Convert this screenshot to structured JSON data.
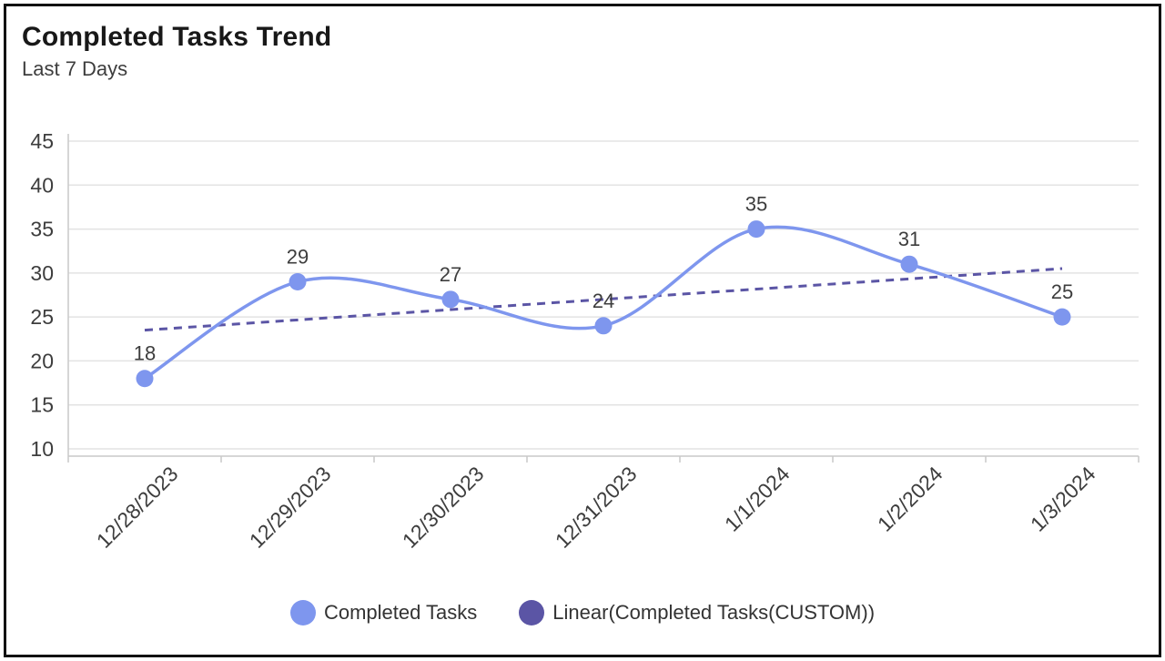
{
  "header": {
    "title": "Completed Tasks Trend",
    "subtitle": "Last 7 Days"
  },
  "chart_data": {
    "type": "line",
    "curve": "smooth",
    "title": "Completed Tasks Trend",
    "subtitle": "Last 7 Days",
    "categories": [
      "12/28/2023",
      "12/29/2023",
      "12/30/2023",
      "12/31/2023",
      "1/1/2024",
      "1/2/2024",
      "1/3/2024"
    ],
    "series": [
      {
        "name": "Completed Tasks",
        "values": [
          18,
          29,
          27,
          24,
          35,
          31,
          25
        ],
        "color": "#7e96ee",
        "show_point_labels": true
      }
    ],
    "trendline": {
      "name": "Linear(Completed Tasks(CUSTOM))",
      "color": "#5b55a5",
      "dashed": true,
      "start_value": 23.5,
      "end_value": 30.5
    },
    "yticks": [
      10,
      15,
      20,
      25,
      30,
      35,
      40,
      45
    ],
    "ylim": [
      10,
      45
    ],
    "xlabel": "",
    "ylabel": "",
    "grid": "horizontal",
    "legend_position": "bottom",
    "x_label_rotation": -45
  },
  "legend": {
    "items": [
      {
        "label": "Completed Tasks",
        "color": "#7e96ee"
      },
      {
        "label": "Linear(Completed Tasks(CUSTOM))",
        "color": "#5b55a5"
      }
    ]
  },
  "colors": {
    "series": "#7e96ee",
    "trendline": "#5b55a5",
    "gridline": "#e3e3e3",
    "axis_line": "#c9c9c9",
    "label_text": "#3d3d3d",
    "title_text": "#181818",
    "card_border": "#111111"
  }
}
